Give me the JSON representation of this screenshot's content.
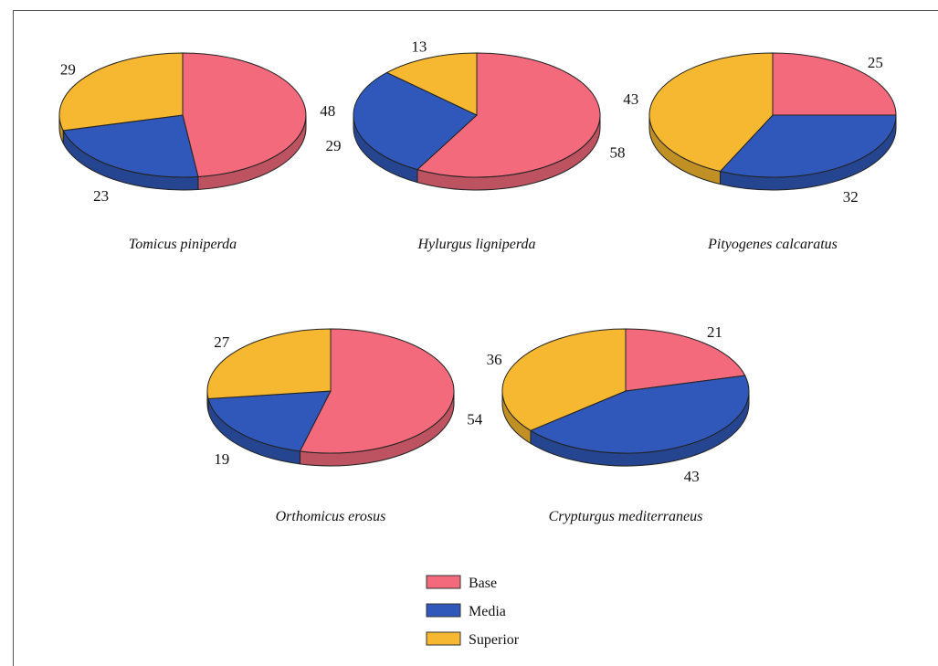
{
  "chart_data": {
    "type": "pie",
    "legend_position": "bottom-center",
    "colors": {
      "Base": "#f26a7c",
      "Media": "#2f58ba",
      "Superior": "#f6b830"
    },
    "legend": [
      "Base",
      "Media",
      "Superior"
    ],
    "pies": [
      {
        "title": "Tomicus piniperda",
        "slices": [
          {
            "name": "Base",
            "value": 48
          },
          {
            "name": "Media",
            "value": 23
          },
          {
            "name": "Superior",
            "value": 29
          }
        ]
      },
      {
        "title": "Hylurgus ligniperda",
        "slices": [
          {
            "name": "Base",
            "value": 58
          },
          {
            "name": "Media",
            "value": 29
          },
          {
            "name": "Superior",
            "value": 13
          }
        ]
      },
      {
        "title": "Pityogenes calcaratus",
        "slices": [
          {
            "name": "Base",
            "value": 25
          },
          {
            "name": "Media",
            "value": 32
          },
          {
            "name": "Superior",
            "value": 43
          }
        ]
      },
      {
        "title": "Orthomicus erosus",
        "slices": [
          {
            "name": "Base",
            "value": 54
          },
          {
            "name": "Media",
            "value": 19
          },
          {
            "name": "Superior",
            "value": 27
          }
        ]
      },
      {
        "title": "Crypturgus mediterraneus",
        "slices": [
          {
            "name": "Base",
            "value": 21
          },
          {
            "name": "Media",
            "value": 43
          },
          {
            "name": "Superior",
            "value": 36
          }
        ]
      }
    ]
  }
}
